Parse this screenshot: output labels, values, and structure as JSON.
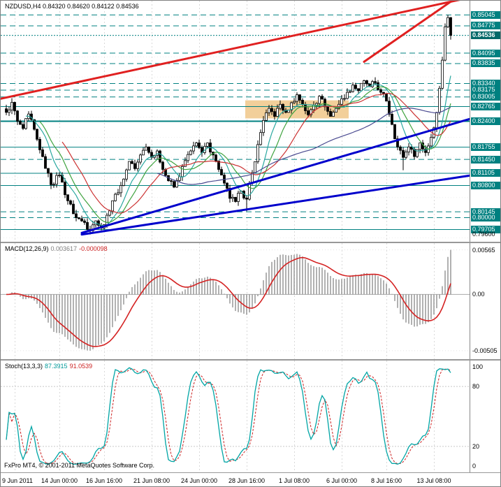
{
  "window": {
    "app": "FxPro MT4",
    "chart_title": "NZDUSD,H4"
  },
  "header": {
    "text": "NZDUSD,H4 0.84320 0.84620 0.84122 0.84536"
  },
  "macd_panel": {
    "name": "MACD(12,26,9)",
    "value_main": "0.003617",
    "value_signal": "-0.000098"
  },
  "stoch_panel": {
    "name": "Stoch(13,3,3)",
    "value_k": "87.3915",
    "value_d": "91.0539"
  },
  "footer": {
    "copyright": "FxPro MT4, © 2001-2011 MetaQuotes Software Corp."
  },
  "colors": {
    "level": "#008080",
    "badge_bg": "#008080",
    "badge_text": "#ffffff",
    "current_badge_bg": "#006868",
    "trend_red": "#e02020",
    "trend_blue": "#0000cc",
    "candle_outline": "#000000",
    "bull_fill": "#ffffff",
    "bear_fill": "#000000",
    "rect_fill": "#f2cf9a",
    "macd_hist": "#909090",
    "macd_signal": "#d42222",
    "stoch_k": "#00a5a5",
    "stoch_d": "#cc2222"
  },
  "chart_data": {
    "type": "candlestick",
    "symbol": "NZDUSD",
    "timeframe": "H4",
    "current_bar": {
      "open": 0.8432,
      "high": 0.8462,
      "low": 0.84122,
      "close": 0.84536
    },
    "last_price": 0.84536,
    "ylim": [
      0.794,
      0.854
    ],
    "candles_count": 160,
    "close_path": [
      [
        0,
        0.8262
      ],
      [
        2,
        0.8287
      ],
      [
        4,
        0.824
      ],
      [
        6,
        0.8222
      ],
      [
        8,
        0.8258
      ],
      [
        11,
        0.8195
      ],
      [
        13,
        0.8152
      ],
      [
        16,
        0.8082
      ],
      [
        19,
        0.8106
      ],
      [
        22,
        0.8042
      ],
      [
        25,
        0.8
      ],
      [
        28,
        0.7988
      ],
      [
        30,
        0.7968
      ],
      [
        32,
        0.7992
      ],
      [
        34,
        0.7974
      ],
      [
        36,
        0.8006
      ],
      [
        38,
        0.8042
      ],
      [
        40,
        0.8062
      ],
      [
        42,
        0.8096
      ],
      [
        44,
        0.814
      ],
      [
        46,
        0.8122
      ],
      [
        48,
        0.8156
      ],
      [
        50,
        0.8176
      ],
      [
        52,
        0.815
      ],
      [
        54,
        0.8166
      ],
      [
        56,
        0.812
      ],
      [
        58,
        0.8092
      ],
      [
        60,
        0.8076
      ],
      [
        62,
        0.8102
      ],
      [
        64,
        0.8142
      ],
      [
        66,
        0.8166
      ],
      [
        68,
        0.8186
      ],
      [
        70,
        0.8162
      ],
      [
        72,
        0.8186
      ],
      [
        74,
        0.8156
      ],
      [
        76,
        0.812
      ],
      [
        78,
        0.8086
      ],
      [
        80,
        0.8048
      ],
      [
        82,
        0.804
      ],
      [
        84,
        0.8066
      ],
      [
        86,
        0.8046
      ],
      [
        88,
        0.8112
      ],
      [
        90,
        0.8182
      ],
      [
        92,
        0.8242
      ],
      [
        94,
        0.8272
      ],
      [
        96,
        0.8252
      ],
      [
        98,
        0.8282
      ],
      [
        100,
        0.8262
      ],
      [
        102,
        0.8286
      ],
      [
        104,
        0.8306
      ],
      [
        106,
        0.8282
      ],
      [
        108,
        0.8256
      ],
      [
        110,
        0.828
      ],
      [
        112,
        0.8302
      ],
      [
        114,
        0.8276
      ],
      [
        116,
        0.8252
      ],
      [
        118,
        0.8272
      ],
      [
        120,
        0.8296
      ],
      [
        122,
        0.8312
      ],
      [
        124,
        0.833
      ],
      [
        126,
        0.8316
      ],
      [
        128,
        0.8341
      ],
      [
        130,
        0.8326
      ],
      [
        132,
        0.8336
      ],
      [
        134,
        0.8312
      ],
      [
        136,
        0.829
      ],
      [
        138,
        0.8232
      ],
      [
        140,
        0.8176
      ],
      [
        142,
        0.815
      ],
      [
        144,
        0.8176
      ],
      [
        146,
        0.8152
      ],
      [
        148,
        0.8186
      ],
      [
        150,
        0.8162
      ],
      [
        152,
        0.82
      ],
      [
        154,
        0.8262
      ],
      [
        155,
        0.8322
      ],
      [
        156,
        0.8392
      ],
      [
        157,
        0.8475
      ],
      [
        158,
        0.8498
      ],
      [
        159,
        0.84536
      ]
    ],
    "pins": [
      {
        "index": 30,
        "type": "low",
        "price": 0.7958
      },
      {
        "index": 86,
        "type": "low",
        "price": 0.8016
      },
      {
        "index": 142,
        "type": "low",
        "price": 0.8118
      },
      {
        "index": 158,
        "type": "high",
        "price": 0.85045
      }
    ],
    "levels": [
      {
        "value": "0.85045",
        "price": 0.85045,
        "style": "dash"
      },
      {
        "value": "0.84775",
        "price": 0.84775,
        "style": "dash"
      },
      {
        "value": "0.84536",
        "price": 0.84536,
        "style": "current"
      },
      {
        "value": "0.84095",
        "price": 0.84095,
        "style": "dash"
      },
      {
        "value": "0.83835",
        "price": 0.83835,
        "style": "dash"
      },
      {
        "value": "0.83340",
        "price": 0.8334,
        "style": "dash"
      },
      {
        "value": "0.83175",
        "price": 0.83175,
        "style": "dash"
      },
      {
        "value": "0.83005",
        "price": 0.83005,
        "style": "dash"
      },
      {
        "value": "0.82765",
        "price": 0.82765,
        "style": "solid"
      },
      {
        "value": "0.82400",
        "price": 0.824,
        "style": "solid",
        "width": 2
      },
      {
        "value": "0.81755",
        "price": 0.81755,
        "style": "solid"
      },
      {
        "value": "0.81450",
        "price": 0.8145,
        "style": "dash"
      },
      {
        "value": "0.81105",
        "price": 0.81105,
        "style": "solid"
      },
      {
        "value": "0.80800",
        "price": 0.808,
        "style": "solid"
      },
      {
        "value": "0.80145",
        "price": 0.80145,
        "style": "dash"
      },
      {
        "value": "0.80000",
        "price": 0.8,
        "style": "dash"
      },
      {
        "value": "0.79705",
        "price": 0.79705,
        "style": "solid"
      }
    ],
    "scale_ticks": [
      {
        "text": "0.79600",
        "price": 0.796
      }
    ],
    "trendlines": [
      {
        "name": "red-trendline-main",
        "color_key": "trend_red",
        "width": 3,
        "i1": -2,
        "p1": 0.8296,
        "i2": 166,
        "p2": 0.8548
      },
      {
        "name": "red-trendline-steep",
        "color_key": "trend_red",
        "width": 3,
        "i1": 128,
        "p1": 0.8388,
        "i2": 162,
        "p2": 0.8552
      },
      {
        "name": "blue-support-fan-upper",
        "color_key": "trend_blue",
        "width": 3,
        "i1": 27,
        "p1": 0.7962,
        "i2": 167,
        "p2": 0.8248
      },
      {
        "name": "blue-support-fan-lower",
        "color_key": "trend_blue",
        "width": 3,
        "i1": 27,
        "p1": 0.7958,
        "i2": 167,
        "p2": 0.8106
      }
    ],
    "rectangle": {
      "i1": 86,
      "i2": 122,
      "p1": 0.8247,
      "p2": 0.8292
    },
    "moving_averages": [
      {
        "period": 8,
        "color": "#2aa8a0"
      },
      {
        "period": 13,
        "color": "#3fa33f"
      },
      {
        "period": 21,
        "color": "#cc3333"
      },
      {
        "period": 55,
        "color": "#4a4a90"
      }
    ],
    "time_axis": [
      {
        "label": "9 Jun 2011",
        "index": 3
      },
      {
        "label": "14 Jun 00:00",
        "index": 19
      },
      {
        "label": "16 Jun 16:00",
        "index": 35
      },
      {
        "label": "21 Jun 08:00",
        "index": 52
      },
      {
        "label": "24 Jun 00:00",
        "index": 69
      },
      {
        "label": "28 Jun 16:00",
        "index": 86
      },
      {
        "label": "1 Jul 08:00",
        "index": 103
      },
      {
        "label": "6 Jul 00:00",
        "index": 120
      },
      {
        "label": "8 Jul 16:00",
        "index": 136
      },
      {
        "label": "13 Jul 08:00",
        "index": 153
      }
    ],
    "indicators": {
      "macd": {
        "name": "MACD",
        "fast": 12,
        "slow": 26,
        "signal": 9,
        "values_shown": {
          "main": 0.003617,
          "signal": -9.8e-05
        },
        "scale_labels": [
          {
            "text": "0.00565",
            "anchor": "max"
          },
          {
            "text": "0.00",
            "anchor": "zero"
          },
          {
            "text": "-0.00505",
            "anchor": "min"
          }
        ]
      },
      "stoch": {
        "name": "Stochastic",
        "k": 13,
        "d": 3,
        "slowing": 3,
        "values_shown": {
          "k": 87.3915,
          "d": 91.0539
        },
        "levels": [
          80,
          20
        ],
        "ylim": [
          -6,
          106
        ],
        "scale_labels": [
          {
            "text": "100",
            "v": 100
          },
          {
            "text": "80",
            "v": 80
          },
          {
            "text": "20",
            "v": 20
          },
          {
            "text": "0",
            "v": 0
          }
        ]
      }
    }
  }
}
